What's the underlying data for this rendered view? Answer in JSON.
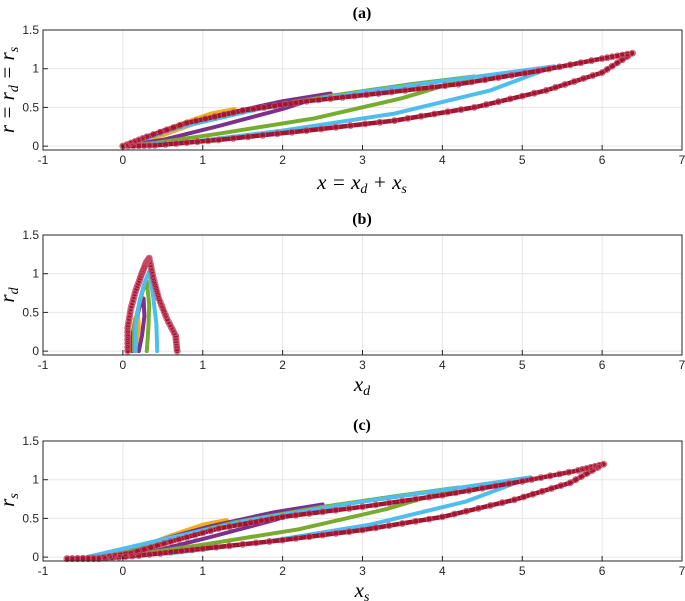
{
  "chart_data": [
    {
      "type": "line",
      "title": "(a)",
      "xlabel": "x = x_d + x_s",
      "ylabel": "r = r_d = r_s",
      "xlim": [
        -1,
        7
      ],
      "ylim": [
        -0.05,
        1.5
      ],
      "xticks": [
        "-1",
        "0",
        "1",
        "2",
        "3",
        "4",
        "5",
        "6",
        "7"
      ],
      "yticks": [
        "0",
        "0.5",
        "1",
        "1.5"
      ],
      "grid": true,
      "series": [
        {
          "color": "#EDB120",
          "points": [
            [
              0,
              0
            ],
            [
              0.3,
              0.12
            ],
            [
              0.7,
              0.28
            ],
            [
              1.1,
              0.42
            ],
            [
              1.4,
              0.48
            ],
            [
              1.0,
              0.33
            ],
            [
              0.5,
              0.14
            ],
            [
              0,
              0
            ]
          ]
        },
        {
          "color": "#7E2F8E",
          "points": [
            [
              0,
              0
            ],
            [
              0.5,
              0.2
            ],
            [
              1.2,
              0.4
            ],
            [
              2.0,
              0.58
            ],
            [
              2.6,
              0.68
            ],
            [
              2.0,
              0.48
            ],
            [
              1.2,
              0.26
            ],
            [
              0.5,
              0.08
            ],
            [
              0,
              0
            ]
          ]
        },
        {
          "color": "#77AC30",
          "points": [
            [
              0,
              0
            ],
            [
              0.6,
              0.22
            ],
            [
              1.5,
              0.45
            ],
            [
              2.6,
              0.65
            ],
            [
              3.6,
              0.8
            ],
            [
              4.4,
              0.9
            ],
            [
              3.5,
              0.62
            ],
            [
              2.4,
              0.36
            ],
            [
              1.2,
              0.16
            ],
            [
              0.4,
              0.04
            ],
            [
              0,
              0
            ]
          ]
        },
        {
          "color": "#4DBEEE",
          "points": [
            [
              0,
              0
            ],
            [
              0.7,
              0.24
            ],
            [
              1.7,
              0.48
            ],
            [
              3.0,
              0.7
            ],
            [
              4.3,
              0.88
            ],
            [
              5.4,
              1.03
            ],
            [
              4.6,
              0.72
            ],
            [
              3.4,
              0.42
            ],
            [
              2.0,
              0.2
            ],
            [
              0.8,
              0.05
            ],
            [
              0,
              0
            ]
          ]
        },
        {
          "color": "#A2142F",
          "points": [
            [
              0,
              0
            ],
            [
              0.3,
              0.12
            ],
            [
              0.8,
              0.3
            ],
            [
              1.5,
              0.46
            ],
            [
              2.3,
              0.58
            ],
            [
              3.2,
              0.68
            ],
            [
              4.2,
              0.8
            ],
            [
              5.2,
              0.97
            ],
            [
              6.0,
              1.13
            ],
            [
              6.38,
              1.2
            ],
            [
              6.0,
              0.95
            ],
            [
              5.3,
              0.72
            ],
            [
              4.4,
              0.5
            ],
            [
              3.4,
              0.33
            ],
            [
              2.3,
              0.2
            ],
            [
              1.2,
              0.08
            ],
            [
              0.4,
              0.01
            ],
            [
              0,
              0
            ]
          ]
        }
      ]
    },
    {
      "type": "line",
      "title": "(b)",
      "xlabel": "x_d",
      "ylabel": "r_d",
      "xlim": [
        -1,
        7
      ],
      "ylim": [
        -0.05,
        1.5
      ],
      "xticks": [
        "-1",
        "0",
        "1",
        "2",
        "3",
        "4",
        "5",
        "6",
        "7"
      ],
      "yticks": [
        "0",
        "0.5",
        "1",
        "1.5"
      ],
      "grid": true,
      "series": [
        {
          "color": "#EDB120",
          "points": [
            [
              0.1,
              0
            ],
            [
              0.1,
              0.1
            ],
            [
              0.12,
              0.25
            ],
            [
              0.15,
              0.42
            ],
            [
              0.19,
              0.48
            ],
            [
              0.2,
              0.3
            ],
            [
              0.17,
              0.1
            ],
            [
              0.15,
              0
            ]
          ]
        },
        {
          "color": "#7E2F8E",
          "points": [
            [
              0.12,
              0
            ],
            [
              0.12,
              0.2
            ],
            [
              0.16,
              0.4
            ],
            [
              0.22,
              0.6
            ],
            [
              0.26,
              0.68
            ],
            [
              0.27,
              0.45
            ],
            [
              0.24,
              0.2
            ],
            [
              0.2,
              0
            ]
          ]
        },
        {
          "color": "#77AC30",
          "points": [
            [
              0.14,
              0
            ],
            [
              0.14,
              0.3
            ],
            [
              0.19,
              0.55
            ],
            [
              0.25,
              0.78
            ],
            [
              0.3,
              0.9
            ],
            [
              0.33,
              0.6
            ],
            [
              0.32,
              0.3
            ],
            [
              0.3,
              0
            ]
          ]
        },
        {
          "color": "#4DBEEE",
          "points": [
            [
              0.16,
              0
            ],
            [
              0.16,
              0.35
            ],
            [
              0.21,
              0.65
            ],
            [
              0.27,
              0.88
            ],
            [
              0.33,
              1.03
            ],
            [
              0.38,
              0.7
            ],
            [
              0.42,
              0.35
            ],
            [
              0.43,
              0
            ]
          ]
        },
        {
          "color": "#A2142F",
          "points": [
            [
              0.06,
              0
            ],
            [
              0.06,
              0.3
            ],
            [
              0.1,
              0.55
            ],
            [
              0.16,
              0.78
            ],
            [
              0.23,
              0.98
            ],
            [
              0.29,
              1.14
            ],
            [
              0.33,
              1.2
            ],
            [
              0.38,
              0.95
            ],
            [
              0.45,
              0.68
            ],
            [
              0.55,
              0.42
            ],
            [
              0.66,
              0.2
            ],
            [
              0.68,
              0
            ]
          ]
        }
      ]
    },
    {
      "type": "line",
      "title": "(c)",
      "xlabel": "x_s",
      "ylabel": "r_s",
      "xlim": [
        -1,
        7
      ],
      "ylim": [
        -0.05,
        1.5
      ],
      "xticks": [
        "-1",
        "0",
        "1",
        "2",
        "3",
        "4",
        "5",
        "6",
        "7"
      ],
      "yticks": [
        "0",
        "0.5",
        "1",
        "1.5"
      ],
      "grid": true,
      "series": [
        {
          "color": "#EDB120",
          "points": [
            [
              -0.15,
              0
            ],
            [
              0.2,
              0.12
            ],
            [
              0.6,
              0.28
            ],
            [
              1.0,
              0.42
            ],
            [
              1.3,
              0.48
            ],
            [
              0.9,
              0.33
            ],
            [
              0.4,
              0.14
            ],
            [
              -0.1,
              -0.01
            ]
          ]
        },
        {
          "color": "#7E2F8E",
          "points": [
            [
              -0.25,
              0
            ],
            [
              0.4,
              0.2
            ],
            [
              1.1,
              0.4
            ],
            [
              1.9,
              0.58
            ],
            [
              2.5,
              0.68
            ],
            [
              1.9,
              0.48
            ],
            [
              1.1,
              0.26
            ],
            [
              0.4,
              0.08
            ],
            [
              -0.2,
              -0.01
            ]
          ]
        },
        {
          "color": "#77AC30",
          "points": [
            [
              -0.35,
              0
            ],
            [
              0.5,
              0.22
            ],
            [
              1.4,
              0.45
            ],
            [
              2.5,
              0.65
            ],
            [
              3.5,
              0.8
            ],
            [
              4.2,
              0.9
            ],
            [
              3.3,
              0.62
            ],
            [
              2.2,
              0.36
            ],
            [
              1.0,
              0.16
            ],
            [
              0.2,
              0.04
            ],
            [
              -0.3,
              -0.01
            ]
          ]
        },
        {
          "color": "#4DBEEE",
          "points": [
            [
              -0.45,
              0
            ],
            [
              0.55,
              0.24
            ],
            [
              1.6,
              0.48
            ],
            [
              2.9,
              0.7
            ],
            [
              4.1,
              0.88
            ],
            [
              5.1,
              1.03
            ],
            [
              4.3,
              0.72
            ],
            [
              3.1,
              0.42
            ],
            [
              1.8,
              0.2
            ],
            [
              0.6,
              0.05
            ],
            [
              -0.4,
              -0.01
            ]
          ]
        },
        {
          "color": "#A2142F",
          "points": [
            [
              -0.7,
              -0.02
            ],
            [
              -0.3,
              -0.01
            ],
            [
              0.1,
              0.05
            ],
            [
              0.6,
              0.2
            ],
            [
              1.2,
              0.37
            ],
            [
              2.0,
              0.52
            ],
            [
              3.0,
              0.65
            ],
            [
              4.0,
              0.8
            ],
            [
              5.0,
              0.98
            ],
            [
              5.7,
              1.12
            ],
            [
              6.02,
              1.2
            ],
            [
              5.6,
              0.96
            ],
            [
              4.9,
              0.74
            ],
            [
              4.0,
              0.52
            ],
            [
              3.0,
              0.35
            ],
            [
              2.0,
              0.22
            ],
            [
              1.0,
              0.11
            ],
            [
              0.2,
              0.02
            ],
            [
              -0.3,
              -0.02
            ],
            [
              -0.7,
              -0.02
            ]
          ]
        }
      ]
    }
  ]
}
